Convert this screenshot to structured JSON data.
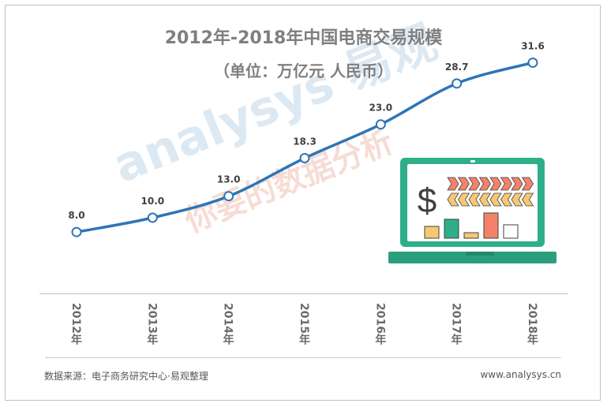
{
  "header": {
    "title": "2012年-2018年中国电商交易规模",
    "unit": "（单位：万亿元 人民币）"
  },
  "watermark": {
    "brand": "analysys 易观",
    "slogan": "你要的数据分析"
  },
  "footer": {
    "source": "数据来源：电子商务研究中心·易观整理",
    "url": "www.analysys.cn"
  },
  "colors": {
    "line": "#2e75b6",
    "marker_fill": "#ffffff",
    "label": "#404040",
    "laptop_screen_border": "#2eae8b",
    "laptop_base": "#2b9f7d"
  },
  "illustration": {
    "icon": "laptop-with-chart-icon"
  },
  "chart_data": {
    "type": "line",
    "title": "2012年-2018年中国电商交易规模",
    "subtitle": "（单位：万亿元 人民币）",
    "categories": [
      "2012年",
      "2013年",
      "2014年",
      "2015年",
      "2016年",
      "2017年",
      "2018年"
    ],
    "series": [
      {
        "values": [
          8.0,
          10.0,
          13.0,
          18.3,
          23.0,
          28.7,
          31.6
        ]
      }
    ],
    "data_labels": [
      "8.0",
      "10.0",
      "13.0",
      "18.3",
      "23.0",
      "28.7",
      "31.6"
    ],
    "ylim": [
      0,
      40
    ],
    "grid": false,
    "legend": "none"
  }
}
